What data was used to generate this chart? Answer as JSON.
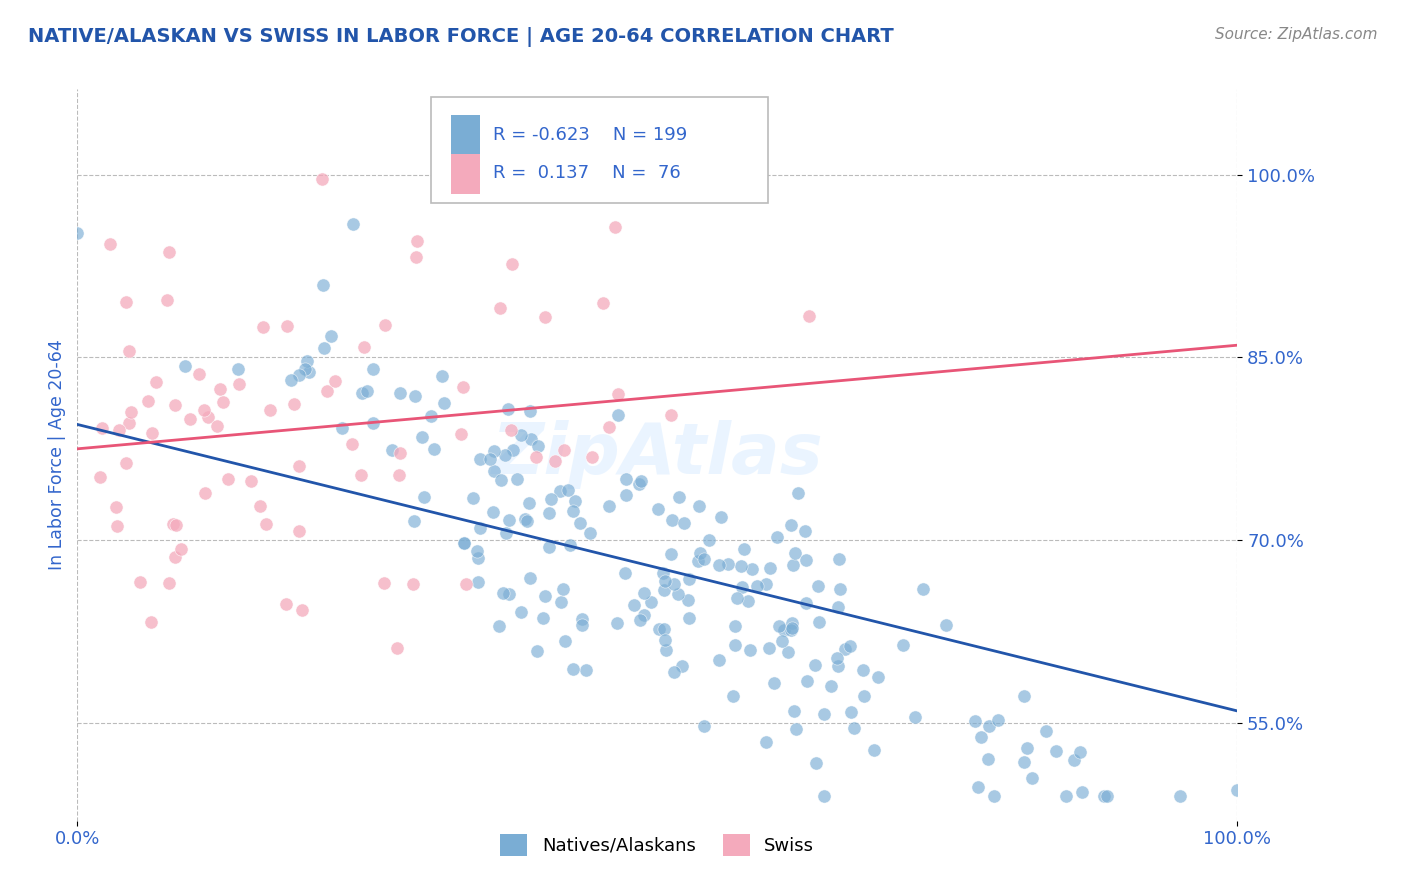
{
  "title": "NATIVE/ALASKAN VS SWISS IN LABOR FORCE | AGE 20-64 CORRELATION CHART",
  "source": "Source: ZipAtlas.com",
  "ylabel": "In Labor Force | Age 20-64",
  "xlim": [
    0.0,
    1.0
  ],
  "ylim": [
    0.47,
    1.07
  ],
  "x_ticks": [
    0.0,
    1.0
  ],
  "x_tick_labels": [
    "0.0%",
    "100.0%"
  ],
  "y_ticks": [
    0.55,
    0.7,
    0.85,
    1.0
  ],
  "y_tick_labels": [
    "55.0%",
    "70.0%",
    "85.0%",
    "100.0%"
  ],
  "blue_color": "#7AADD4",
  "pink_color": "#F4AABC",
  "blue_line_color": "#2255AA",
  "pink_line_color": "#E85577",
  "blue_R": -0.623,
  "blue_N": 199,
  "pink_R": 0.137,
  "pink_N": 76,
  "blue_intercept": 0.795,
  "blue_slope": -0.235,
  "pink_intercept": 0.775,
  "pink_slope": 0.085,
  "background_color": "#FFFFFF",
  "grid_color": "#BBBBBB",
  "title_color": "#2255AA",
  "tick_color": "#3366CC",
  "legend_label_blue": "Natives/Alaskans",
  "legend_label_pink": "Swiss",
  "watermark": "ZipAtlas",
  "n_blue": 199,
  "n_pink": 76
}
